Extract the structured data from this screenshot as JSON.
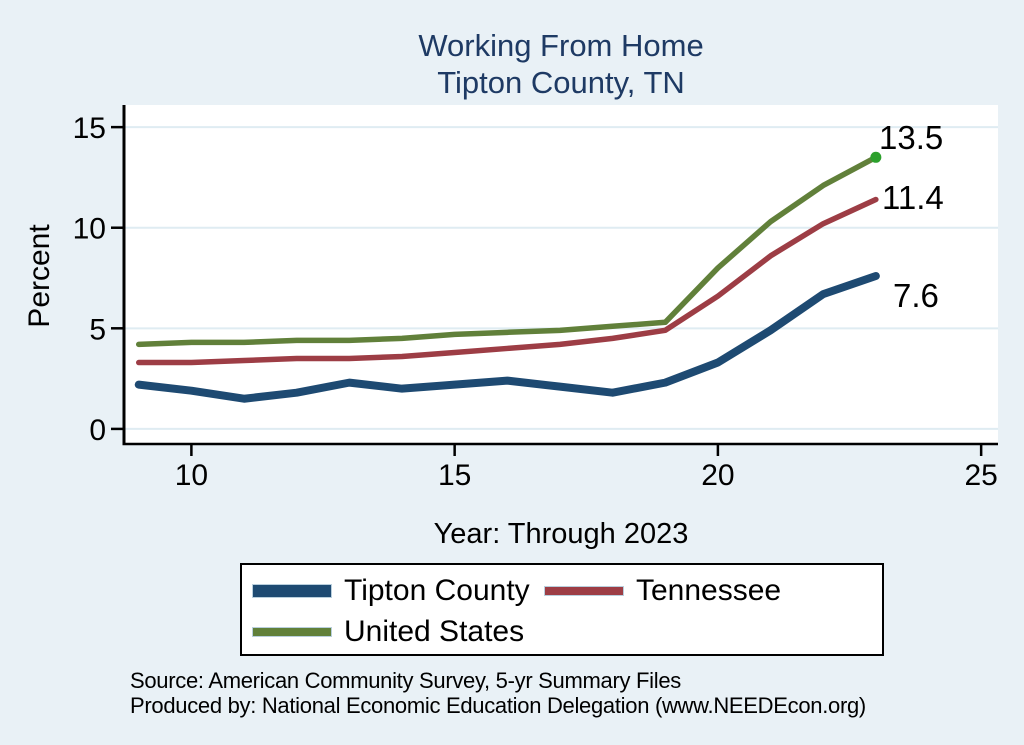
{
  "title": {
    "line1": "Working From Home",
    "line2": "Tipton County, TN",
    "color": "#1e3a64"
  },
  "axes": {
    "y_title": "Percent",
    "x_title": "Year: Through 2023",
    "y_ticks": [
      0,
      5,
      10,
      15
    ],
    "x_ticks": [
      10,
      15,
      20,
      25
    ],
    "grid_color": "#dfecf2",
    "axis_color": "#000000",
    "plot_background": "#ffffff"
  },
  "chart_data": {
    "type": "line",
    "title": "Working From Home — Tipton County, TN",
    "xlabel": "Year: Through 2023",
    "ylabel": "Percent",
    "xlim": [
      8.72,
      25.32
    ],
    "ylim": [
      -0.8,
      16.1
    ],
    "grid": "horizontal",
    "legend_position": "bottom",
    "x": [
      2009,
      2010,
      2011,
      2012,
      2013,
      2014,
      2015,
      2016,
      2017,
      2018,
      2019,
      2020,
      2021,
      2022,
      2023
    ],
    "series": [
      {
        "name": "Tipton County",
        "color": "#1e4a72",
        "line_width": 8,
        "values": [
          2.2,
          1.9,
          1.5,
          1.8,
          2.3,
          2.0,
          2.2,
          2.4,
          2.1,
          1.8,
          2.3,
          3.3,
          4.9,
          6.7,
          7.6
        ],
        "end_label": "7.6"
      },
      {
        "name": "Tennessee",
        "color": "#9d3d45",
        "line_width": 5.5,
        "values": [
          3.3,
          3.3,
          3.4,
          3.5,
          3.5,
          3.6,
          3.8,
          4.0,
          4.2,
          4.5,
          4.9,
          6.6,
          8.6,
          10.2,
          11.4
        ],
        "end_label": "11.4"
      },
      {
        "name": "United States",
        "color": "#61803a",
        "line_width": 5.5,
        "values": [
          4.2,
          4.3,
          4.3,
          4.4,
          4.4,
          4.5,
          4.7,
          4.8,
          4.9,
          5.1,
          5.3,
          8.0,
          10.3,
          12.1,
          13.5
        ],
        "end_label": "13.5",
        "end_dot_color": "#2ca02c"
      }
    ]
  },
  "legend": {
    "items": [
      {
        "label": "Tipton County",
        "swatch_height": 12
      },
      {
        "label": "Tennessee",
        "swatch_height": 8
      },
      {
        "label": "United States",
        "swatch_height": 8
      }
    ]
  },
  "footer": {
    "line1": "Source: American Community Survey, 5-yr Summary Files",
    "line2": "Produced by: National Economic Education Delegation (www.NEEDEcon.org)"
  }
}
